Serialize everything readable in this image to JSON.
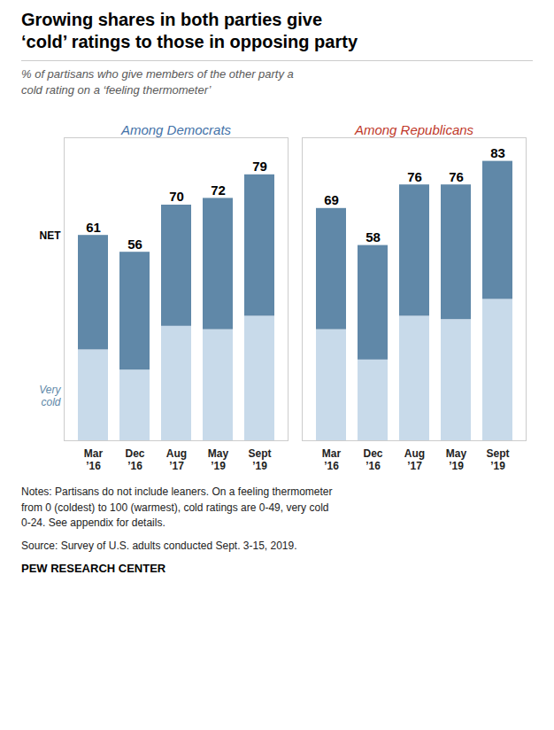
{
  "chart_data": {
    "type": "bar",
    "stacked": true,
    "title": "Growing shares in both parties give\n‘cold’ ratings to those in opposing party",
    "subtitle": "% of partisans who give members of the other party a\ncold rating on a ‘feeling thermometer’",
    "groups": [
      {
        "name": "Among Democrats",
        "color": "#4472a8",
        "categories": [
          "Mar\n’16",
          "Dec\n’16",
          "Aug\n’17",
          "May\n’19",
          "Sept\n’19"
        ]
      },
      {
        "name": "Among Republicans",
        "color": "#c0392b",
        "categories": [
          "Mar\n’16",
          "Dec\n’16",
          "Aug\n’17",
          "May\n’19",
          "Sept\n’19"
        ]
      }
    ],
    "series": [
      {
        "name": "Very\ncold",
        "color": "#c8daea",
        "values": [
          27,
          21,
          34,
          33,
          37,
          33,
          24,
          37,
          36,
          42
        ]
      },
      {
        "color": "#6088a8",
        "values": [
          34,
          35,
          36,
          39,
          42,
          36,
          34,
          39,
          40,
          41
        ]
      }
    ],
    "totals": {
      "name": "NET",
      "values": [
        61,
        56,
        70,
        72,
        79,
        69,
        58,
        76,
        76,
        83
      ]
    },
    "ylim": [
      0,
      90
    ],
    "yticks": [],
    "tick_labels": "x",
    "grid": false,
    "notes": "Notes: Partisans do not include leaners. On a feeling thermometer\nfrom 0 (coldest) to 100 (warmest), cold ratings are 0-49, very cold\n0-24. See appendix for details.",
    "source": "Source: Survey of U.S. adults conducted Sept. 3-15, 2019.",
    "footer": "PEW RESEARCH CENTER"
  }
}
